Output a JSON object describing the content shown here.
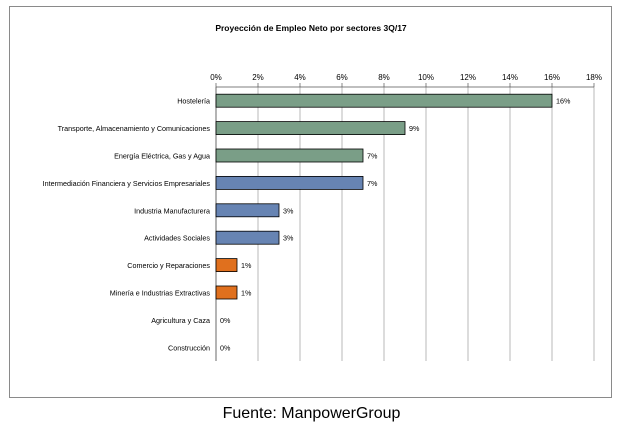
{
  "source": "Fuente: ManpowerGroup",
  "chart_data": {
    "type": "bar",
    "orientation": "horizontal",
    "title": "Proyección de Empleo Neto por sectores 3Q/17",
    "xlabel": "",
    "ylabel": "",
    "xlim": [
      0,
      18
    ],
    "ticks": [
      "0%",
      "2%",
      "4%",
      "6%",
      "8%",
      "10%",
      "12%",
      "14%",
      "16%",
      "18%"
    ],
    "grid": true,
    "categories": [
      "Hostelería",
      "Transporte, Almacenamiento y Comunicaciones",
      "Energía Eléctrica, Gas y Agua",
      "Intermediación Financiera y Servicios Empresariales",
      "Industria Manufacturera",
      "Actividades Sociales",
      "Comercio y Reparaciones",
      "Minería e Industrias Extractivas",
      "Agricultura y Caza",
      "Construcción"
    ],
    "values": [
      16,
      9,
      7,
      7,
      3,
      3,
      1,
      1,
      0,
      0
    ],
    "labels": [
      "16%",
      "9%",
      "7%",
      "7%",
      "3%",
      "3%",
      "1%",
      "1%",
      "0%",
      "0%"
    ],
    "colors": [
      "#7a9e87",
      "#7a9e87",
      "#7a9e87",
      "#6784b3",
      "#6784b3",
      "#6784b3",
      "#e0701e",
      "#e0701e",
      "#e0701e",
      "#e0701e"
    ]
  }
}
